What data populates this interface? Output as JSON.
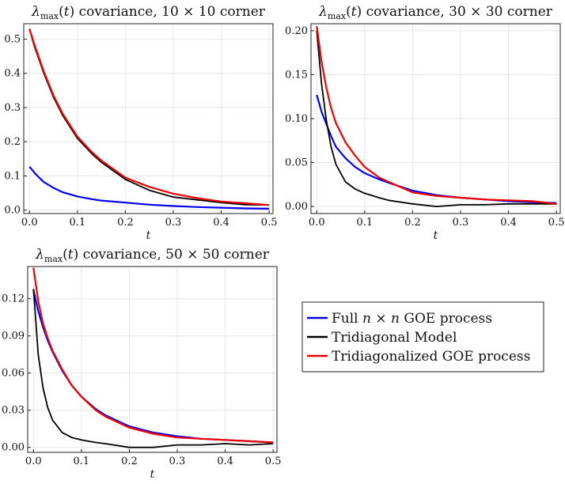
{
  "chart_data": [
    {
      "type": "line",
      "title": "λmax(t) covariance, 10 × 10 corner",
      "xlabel": "t",
      "ylabel": "",
      "xlim": [
        -0.012,
        0.508
      ],
      "ylim": [
        -0.01,
        0.545
      ],
      "xticks": [
        0.0,
        0.1,
        0.2,
        0.3,
        0.4,
        0.5
      ],
      "xtick_labels": [
        "0.0",
        "0.1",
        "0.2",
        "0.3",
        "0.4",
        "0.5"
      ],
      "yticks": [
        0.0,
        0.1,
        0.2,
        0.3,
        0.4,
        0.5
      ],
      "ytick_labels": [
        "0.0",
        "0.1",
        "0.2",
        "0.3",
        "0.4",
        "0.5"
      ],
      "series": [
        {
          "name": "Full n × n GOE process",
          "color": "#0000ee",
          "x": [
            0,
            0.01,
            0.02,
            0.03,
            0.05,
            0.07,
            0.1,
            0.13,
            0.15,
            0.2,
            0.25,
            0.3,
            0.35,
            0.4,
            0.45,
            0.5
          ],
          "y": [
            0.127,
            0.11,
            0.095,
            0.082,
            0.065,
            0.052,
            0.04,
            0.032,
            0.028,
            0.022,
            0.016,
            0.012,
            0.009,
            0.007,
            0.005,
            0.004
          ]
        },
        {
          "name": "Tridiagonal Model",
          "color": "#000000",
          "x": [
            0,
            0.01,
            0.02,
            0.03,
            0.05,
            0.07,
            0.1,
            0.13,
            0.15,
            0.2,
            0.25,
            0.3,
            0.35,
            0.4,
            0.45,
            0.5
          ],
          "y": [
            0.53,
            0.48,
            0.44,
            0.4,
            0.33,
            0.275,
            0.21,
            0.165,
            0.14,
            0.09,
            0.058,
            0.038,
            0.03,
            0.022,
            0.016,
            0.015
          ]
        },
        {
          "name": "Tridiagonalized GOE process",
          "color": "#ee0000",
          "x": [
            0,
            0.01,
            0.02,
            0.03,
            0.05,
            0.07,
            0.1,
            0.13,
            0.15,
            0.2,
            0.25,
            0.3,
            0.35,
            0.4,
            0.45,
            0.5
          ],
          "y": [
            0.53,
            0.485,
            0.445,
            0.405,
            0.335,
            0.28,
            0.215,
            0.17,
            0.145,
            0.095,
            0.068,
            0.048,
            0.035,
            0.025,
            0.02,
            0.015
          ]
        }
      ]
    },
    {
      "type": "line",
      "title": "λmax(t) covariance, 30 × 30 corner",
      "xlabel": "t",
      "ylabel": "",
      "xlim": [
        -0.012,
        0.508
      ],
      "ylim": [
        -0.008,
        0.208
      ],
      "xticks": [
        0.0,
        0.1,
        0.2,
        0.3,
        0.4,
        0.5
      ],
      "xtick_labels": [
        "0.0",
        "0.1",
        "0.2",
        "0.3",
        "0.4",
        "0.5"
      ],
      "yticks": [
        0.0,
        0.05,
        0.1,
        0.15,
        0.2
      ],
      "ytick_labels": [
        "0.00",
        "0.05",
        "0.10",
        "0.15",
        "0.20"
      ],
      "series": [
        {
          "name": "Full n × n GOE process",
          "color": "#0000ee",
          "x": [
            0,
            0.01,
            0.02,
            0.03,
            0.04,
            0.06,
            0.08,
            0.1,
            0.13,
            0.15,
            0.2,
            0.25,
            0.3,
            0.35,
            0.4,
            0.45,
            0.5
          ],
          "y": [
            0.127,
            0.108,
            0.094,
            0.08,
            0.068,
            0.055,
            0.045,
            0.038,
            0.031,
            0.027,
            0.018,
            0.013,
            0.01,
            0.008,
            0.006,
            0.005,
            0.004
          ]
        },
        {
          "name": "Tridiagonal Model",
          "color": "#000000",
          "x": [
            0,
            0.01,
            0.02,
            0.03,
            0.04,
            0.06,
            0.08,
            0.1,
            0.13,
            0.15,
            0.2,
            0.25,
            0.3,
            0.35,
            0.4,
            0.45,
            0.5
          ],
          "y": [
            0.2,
            0.14,
            0.098,
            0.068,
            0.048,
            0.028,
            0.02,
            0.015,
            0.01,
            0.007,
            0.003,
            0.0,
            0.002,
            0.002,
            0.003,
            0.003,
            0.003
          ]
        },
        {
          "name": "Tridiagonalized GOE process",
          "color": "#ee0000",
          "x": [
            0,
            0.01,
            0.02,
            0.03,
            0.04,
            0.06,
            0.08,
            0.1,
            0.13,
            0.15,
            0.2,
            0.25,
            0.3,
            0.35,
            0.4,
            0.45,
            0.5
          ],
          "y": [
            0.205,
            0.165,
            0.135,
            0.112,
            0.095,
            0.073,
            0.058,
            0.045,
            0.033,
            0.028,
            0.016,
            0.012,
            0.01,
            0.008,
            0.007,
            0.006,
            0.003
          ]
        }
      ]
    },
    {
      "type": "line",
      "title": "λmax(t) covariance, 50 × 50 corner",
      "xlabel": "t",
      "ylabel": "",
      "xlim": [
        -0.012,
        0.508
      ],
      "ylim": [
        -0.004,
        0.146
      ],
      "xticks": [
        0.0,
        0.1,
        0.2,
        0.3,
        0.4,
        0.5
      ],
      "xtick_labels": [
        "0.0",
        "0.1",
        "0.2",
        "0.3",
        "0.4",
        "0.5"
      ],
      "yticks": [
        0.0,
        0.03,
        0.06,
        0.09,
        0.12
      ],
      "ytick_labels": [
        "0.00",
        "0.03",
        "0.06",
        "0.09",
        "0.12"
      ],
      "series": [
        {
          "name": "Full n × n GOE process",
          "color": "#0000ee",
          "x": [
            0,
            0.01,
            0.02,
            0.03,
            0.04,
            0.06,
            0.08,
            0.1,
            0.13,
            0.15,
            0.2,
            0.25,
            0.3,
            0.35,
            0.4,
            0.45,
            0.5
          ],
          "y": [
            0.127,
            0.11,
            0.097,
            0.086,
            0.077,
            0.062,
            0.05,
            0.041,
            0.031,
            0.026,
            0.017,
            0.012,
            0.009,
            0.007,
            0.006,
            0.005,
            0.004
          ]
        },
        {
          "name": "Tridiagonal Model",
          "color": "#000000",
          "x": [
            0,
            0.01,
            0.02,
            0.03,
            0.04,
            0.06,
            0.08,
            0.1,
            0.13,
            0.15,
            0.2,
            0.25,
            0.3,
            0.35,
            0.4,
            0.45,
            0.5
          ],
          "y": [
            0.128,
            0.075,
            0.048,
            0.032,
            0.022,
            0.012,
            0.008,
            0.006,
            0.004,
            0.003,
            0.0,
            0.0,
            0.002,
            0.002,
            0.003,
            0.002,
            0.003
          ]
        },
        {
          "name": "Tridiagonalized GOE process",
          "color": "#ee0000",
          "x": [
            0,
            0.01,
            0.02,
            0.03,
            0.04,
            0.06,
            0.08,
            0.1,
            0.13,
            0.15,
            0.2,
            0.25,
            0.3,
            0.35,
            0.4,
            0.45,
            0.5
          ],
          "y": [
            0.145,
            0.118,
            0.1,
            0.088,
            0.078,
            0.063,
            0.05,
            0.041,
            0.03,
            0.025,
            0.016,
            0.011,
            0.008,
            0.007,
            0.006,
            0.005,
            0.004
          ]
        }
      ]
    }
  ],
  "legend": {
    "placement": "right",
    "entries": [
      {
        "color": "#0000ee",
        "prefix": "Full ",
        "math": "n × n",
        "suffix": " GOE process"
      },
      {
        "color": "#000000",
        "prefix": "Tridiagonal Model",
        "math": "",
        "suffix": ""
      },
      {
        "color": "#ee0000",
        "prefix": "Tridiagonalized GOE process",
        "math": "",
        "suffix": ""
      }
    ]
  }
}
